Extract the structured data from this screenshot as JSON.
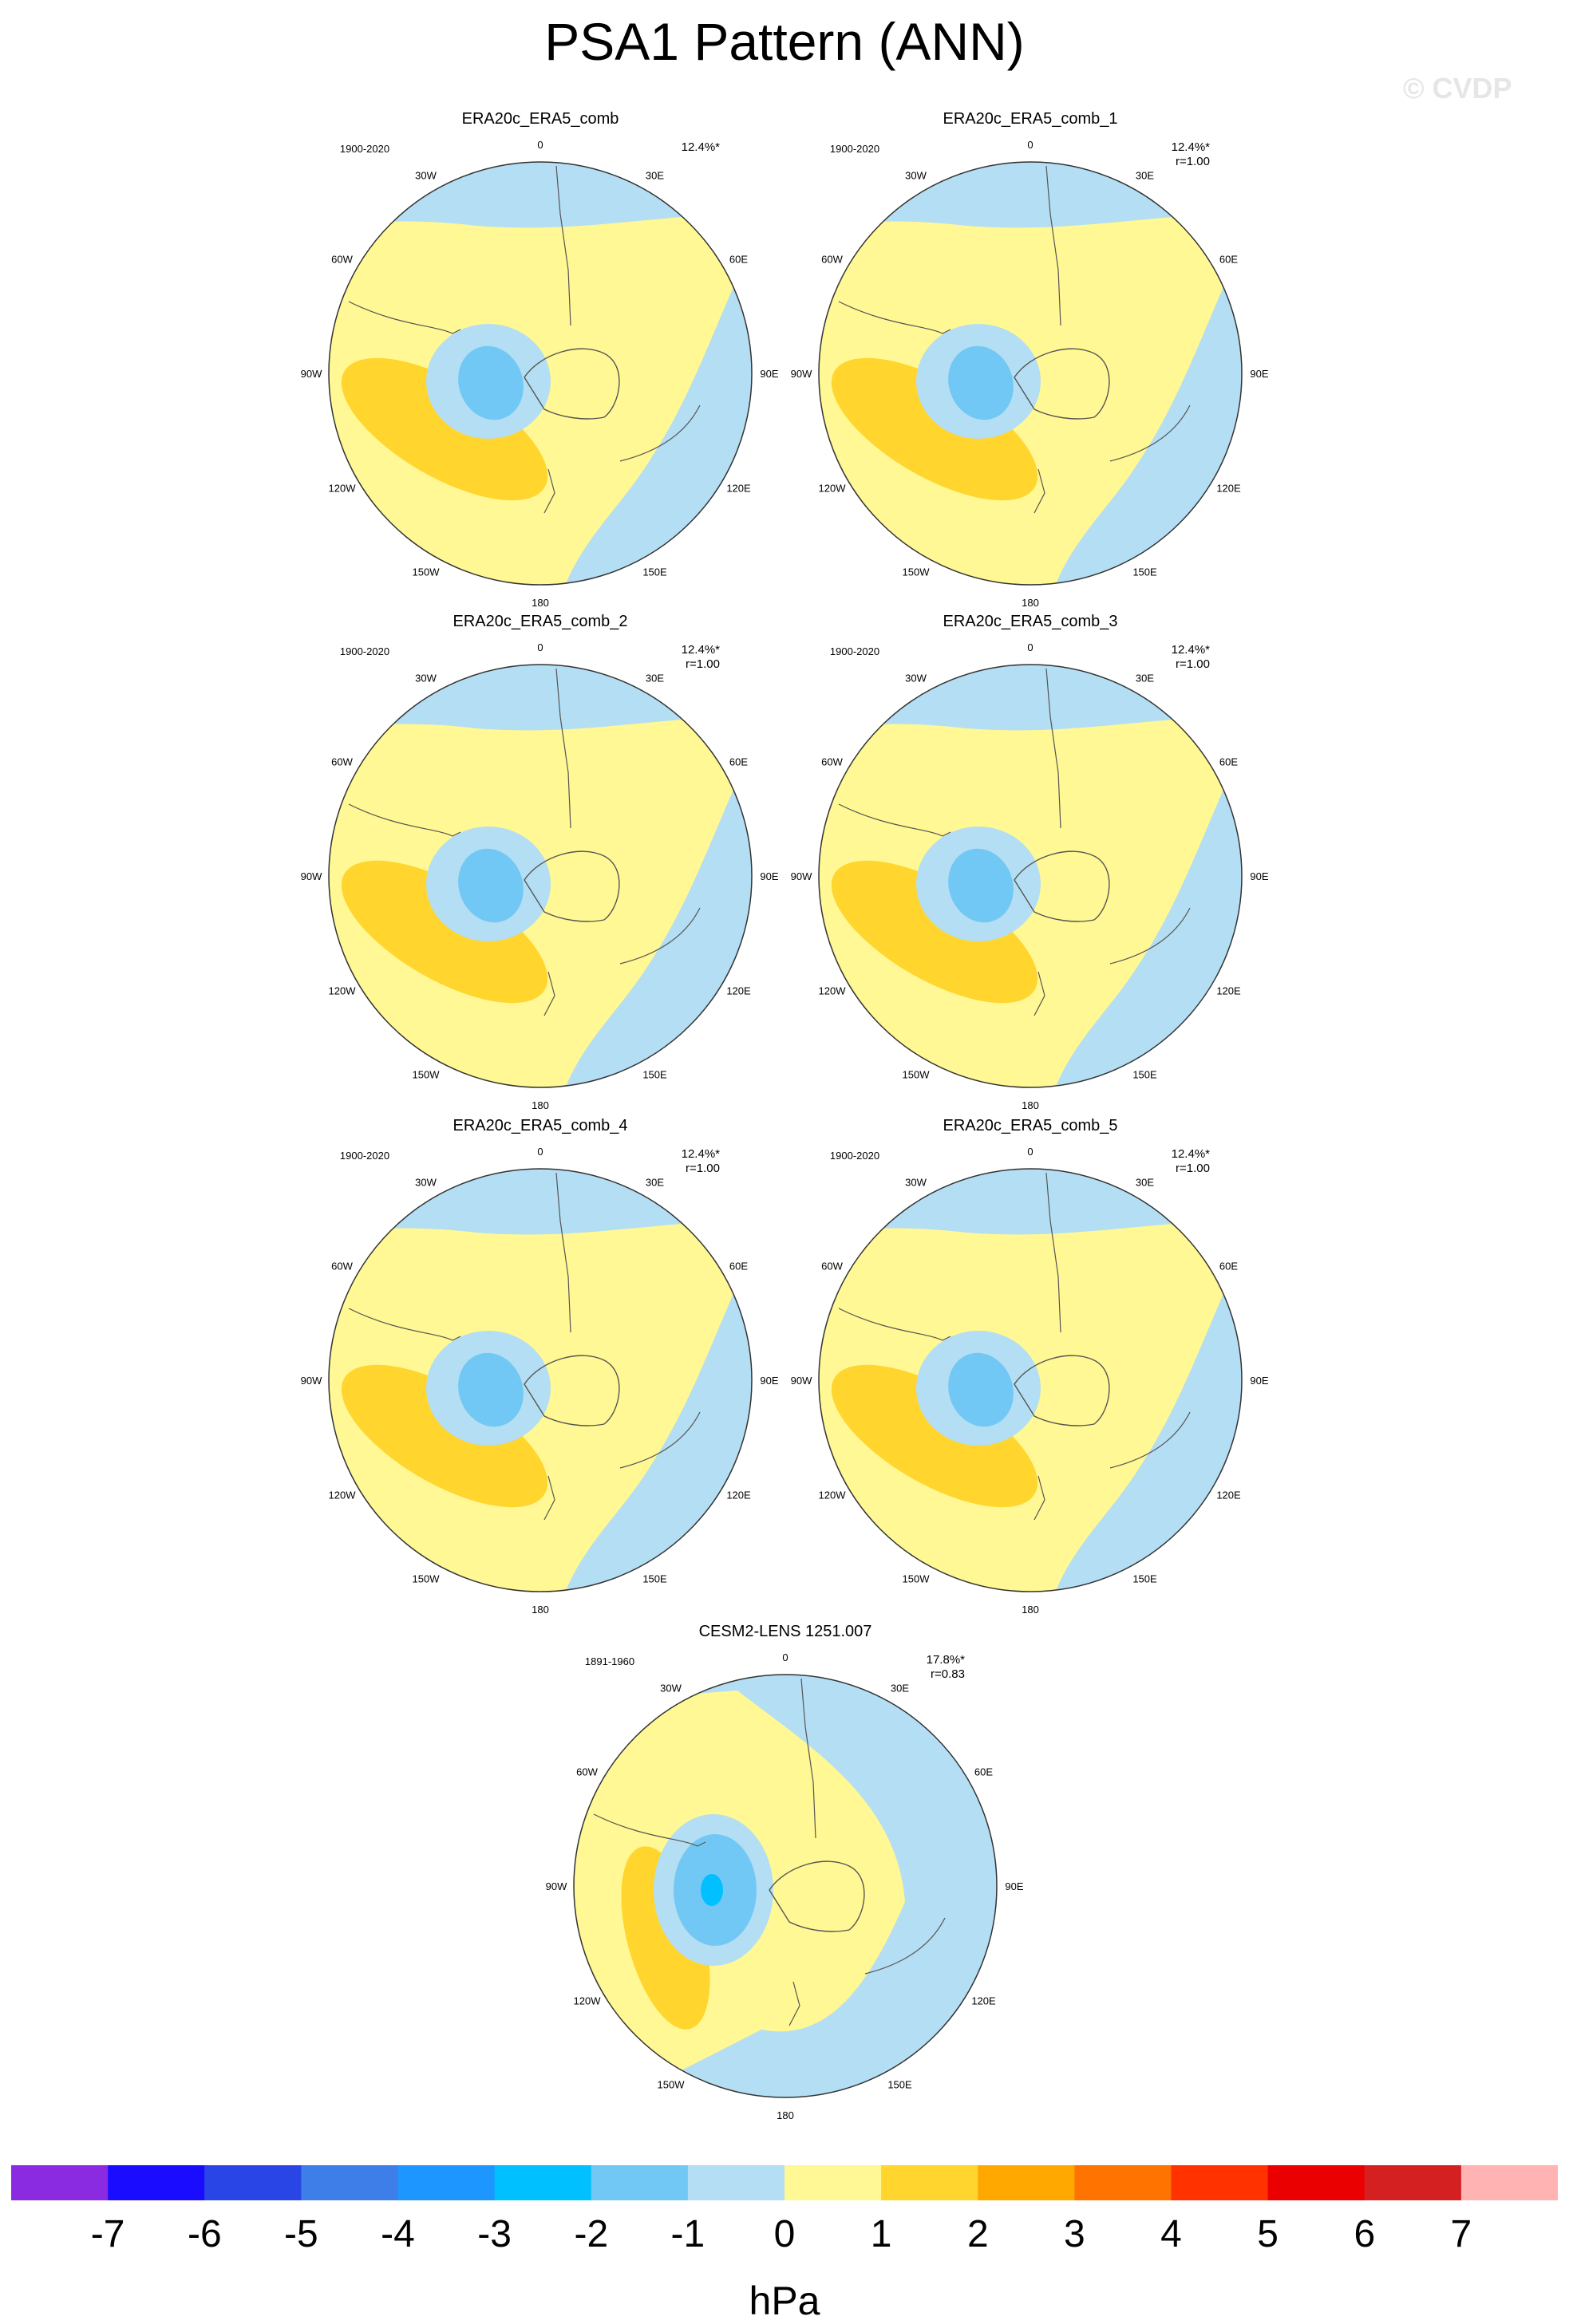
{
  "title": "PSA1 Pattern (ANN)",
  "watermark": "© CVDP",
  "units": "hPa",
  "longitude_labels": [
    "0",
    "30E",
    "60E",
    "90E",
    "120E",
    "150E",
    "180",
    "150W",
    "120W",
    "90W",
    "60W",
    "30W"
  ],
  "panels": [
    {
      "name": "ERA20c_ERA5_comb",
      "period": "1900-2020",
      "pct": "12.4%*",
      "r": "",
      "variant": "obs"
    },
    {
      "name": "ERA20c_ERA5_comb_1",
      "period": "1900-2020",
      "pct": "12.4%*",
      "r": "r=1.00",
      "variant": "obs"
    },
    {
      "name": "ERA20c_ERA5_comb_2",
      "period": "1900-2020",
      "pct": "12.4%*",
      "r": "r=1.00",
      "variant": "obs"
    },
    {
      "name": "ERA20c_ERA5_comb_3",
      "period": "1900-2020",
      "pct": "12.4%*",
      "r": "r=1.00",
      "variant": "obs"
    },
    {
      "name": "ERA20c_ERA5_comb_4",
      "period": "1900-2020",
      "pct": "12.4%*",
      "r": "r=1.00",
      "variant": "obs"
    },
    {
      "name": "ERA20c_ERA5_comb_5",
      "period": "1900-2020",
      "pct": "12.4%*",
      "r": "r=1.00",
      "variant": "obs"
    },
    {
      "name": "CESM2-LENS 1251.007",
      "period": "1891-1960",
      "pct": "17.8%*",
      "r": "r=0.83",
      "variant": "model"
    }
  ],
  "colorbar": {
    "labels": [
      "-7",
      "-6",
      "-5",
      "-4",
      "-3",
      "-2",
      "-1",
      "0",
      "1",
      "2",
      "3",
      "4",
      "5",
      "6",
      "7"
    ],
    "colors": [
      "#8a2be2",
      "#1a0dff",
      "#2a45e6",
      "#3d7ee8",
      "#1e96ff",
      "#00c0ff",
      "#72c8f4",
      "#b4def3",
      "#fff894",
      "#ffd52e",
      "#ffa900",
      "#ff7300",
      "#ff3200",
      "#ea0000",
      "#d42020",
      "#ffb3b3"
    ]
  },
  "map_colors": {
    "land_outline": "#555555",
    "rim": "#333333"
  }
}
